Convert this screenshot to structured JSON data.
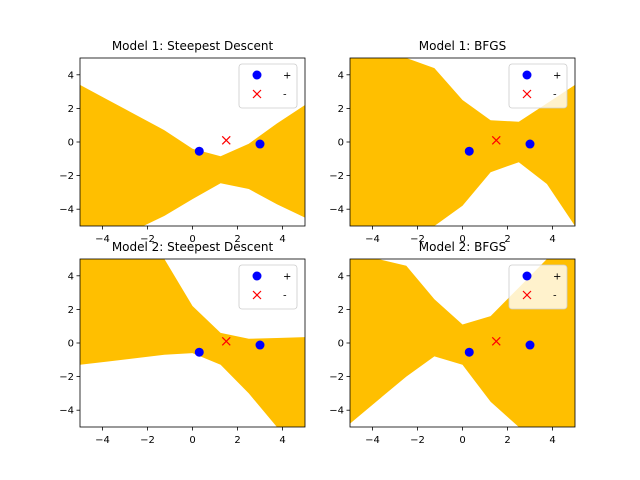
{
  "chart_data": [
    {
      "type": "scatter",
      "title": "Model 1: Steepest Descent",
      "xlim": [
        -5,
        5
      ],
      "ylim": [
        -5,
        5
      ],
      "xticks": [
        -4,
        -2,
        0,
        2,
        4
      ],
      "yticks": [
        -4,
        -2,
        0,
        2,
        4
      ],
      "region": {
        "color": "#ffbf00",
        "upper": [
          3.4,
          2.5,
          1.6,
          0.7,
          -0.4,
          -0.85,
          -0.1,
          1.1,
          2.2
        ],
        "lower": [
          -7.5,
          -6.2,
          -5.2,
          -4.4,
          -3.4,
          -2.45,
          -2.8,
          -3.7,
          -4.5
        ]
      },
      "series": [
        {
          "name": "+",
          "marker": "circle",
          "color": "#0000ff",
          "x": [
            0.3,
            3.0
          ],
          "y": [
            -0.55,
            -0.12
          ]
        },
        {
          "name": "-",
          "marker": "x",
          "color": "#ff0000",
          "x": [
            1.5
          ],
          "y": [
            0.1
          ]
        }
      ],
      "legend": "top-right"
    },
    {
      "type": "scatter",
      "title": "Model 1: BFGS",
      "xlim": [
        -5,
        5
      ],
      "ylim": [
        -5,
        5
      ],
      "xticks": [
        -4,
        -2,
        0,
        2,
        4
      ],
      "yticks": [
        -4,
        -2,
        0,
        2,
        4
      ],
      "region": {
        "color": "#ffbf00",
        "upper": [
          5,
          5,
          5,
          4.4,
          2.5,
          1.3,
          1.2,
          2.3,
          3.4
        ],
        "lower": [
          -5,
          -5,
          -5,
          -5,
          -3.8,
          -1.8,
          -1.2,
          -2.5,
          -5
        ]
      },
      "series": [
        {
          "name": "+",
          "marker": "circle",
          "color": "#0000ff",
          "x": [
            0.3,
            3.0
          ],
          "y": [
            -0.55,
            -0.12
          ]
        },
        {
          "name": "-",
          "marker": "x",
          "color": "#ff0000",
          "x": [
            1.5
          ],
          "y": [
            0.1
          ]
        }
      ],
      "legend": "top-right"
    },
    {
      "type": "scatter",
      "title": "Model 2: Steepest Descent",
      "xlim": [
        -5,
        5
      ],
      "ylim": [
        -5,
        5
      ],
      "xticks": [
        -4,
        -2,
        0,
        2,
        4
      ],
      "yticks": [
        -4,
        -2,
        0,
        2,
        4
      ],
      "region": {
        "color": "#ffbf00",
        "upper": [
          5,
          5,
          5,
          5,
          2.2,
          0.6,
          0.25,
          0.3,
          0.35
        ],
        "lower": [
          -1.3,
          -1.1,
          -0.9,
          -0.7,
          -0.6,
          -1.3,
          -3.0,
          -5,
          -5
        ]
      },
      "series": [
        {
          "name": "+",
          "marker": "circle",
          "color": "#0000ff",
          "x": [
            0.3,
            3.0
          ],
          "y": [
            -0.55,
            -0.12
          ]
        },
        {
          "name": "-",
          "marker": "x",
          "color": "#ff0000",
          "x": [
            1.5
          ],
          "y": [
            0.1
          ]
        }
      ],
      "legend": "top-right"
    },
    {
      "type": "scatter",
      "title": "Model 2: BFGS",
      "xlim": [
        -5,
        5
      ],
      "ylim": [
        -5,
        5
      ],
      "xticks": [
        -4,
        -2,
        0,
        2,
        4
      ],
      "yticks": [
        -4,
        -2,
        0,
        2,
        4
      ],
      "region": {
        "color": "#ffbf00",
        "upper": [
          5,
          5,
          4.6,
          2.6,
          1.1,
          1.6,
          3.3,
          5,
          5
        ],
        "lower": [
          -4.8,
          -3.4,
          -2.0,
          -0.8,
          -1.3,
          -3.5,
          -5,
          -5,
          -5
        ]
      },
      "series": [
        {
          "name": "+",
          "marker": "circle",
          "color": "#0000ff",
          "x": [
            0.3,
            3.0
          ],
          "y": [
            -0.55,
            -0.12
          ]
        },
        {
          "name": "-",
          "marker": "x",
          "color": "#ff0000",
          "x": [
            1.5
          ],
          "y": [
            0.1
          ]
        }
      ],
      "legend": "top-right"
    }
  ]
}
